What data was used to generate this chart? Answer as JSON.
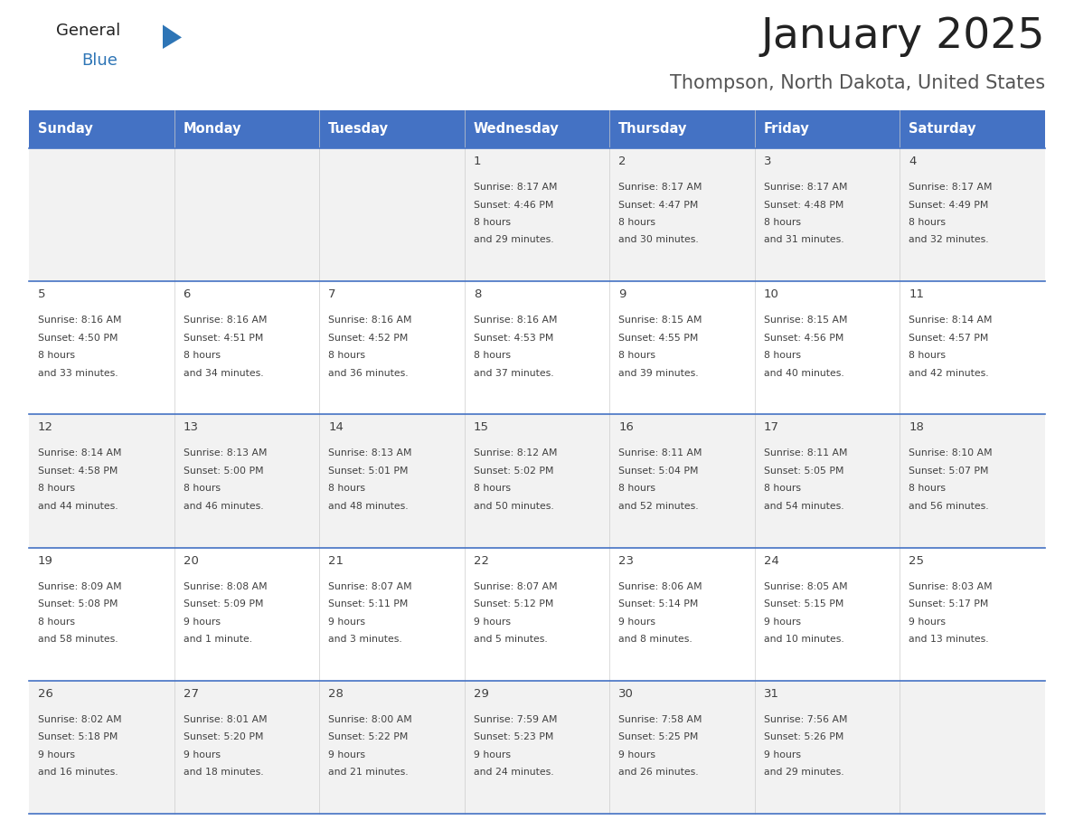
{
  "title": "January 2025",
  "subtitle": "Thompson, North Dakota, United States",
  "days_of_week": [
    "Sunday",
    "Monday",
    "Tuesday",
    "Wednesday",
    "Thursday",
    "Friday",
    "Saturday"
  ],
  "header_bg": "#4472C4",
  "header_text_color": "#FFFFFF",
  "row_bg_light": "#F2F2F2",
  "row_bg_white": "#FFFFFF",
  "cell_text_color": "#404040",
  "separator_color": "#4472C4",
  "title_color": "#222222",
  "subtitle_color": "#555555",
  "logo_general_color": "#222222",
  "logo_blue_color": "#2E75B6",
  "logo_triangle_color": "#2E75B6",
  "weeks": [
    {
      "days": [
        {
          "date": "",
          "sunrise": "",
          "sunset": "",
          "daylight": ""
        },
        {
          "date": "",
          "sunrise": "",
          "sunset": "",
          "daylight": ""
        },
        {
          "date": "",
          "sunrise": "",
          "sunset": "",
          "daylight": ""
        },
        {
          "date": "1",
          "sunrise": "8:17 AM",
          "sunset": "4:46 PM",
          "daylight": "8 hours\nand 29 minutes."
        },
        {
          "date": "2",
          "sunrise": "8:17 AM",
          "sunset": "4:47 PM",
          "daylight": "8 hours\nand 30 minutes."
        },
        {
          "date": "3",
          "sunrise": "8:17 AM",
          "sunset": "4:48 PM",
          "daylight": "8 hours\nand 31 minutes."
        },
        {
          "date": "4",
          "sunrise": "8:17 AM",
          "sunset": "4:49 PM",
          "daylight": "8 hours\nand 32 minutes."
        }
      ]
    },
    {
      "days": [
        {
          "date": "5",
          "sunrise": "8:16 AM",
          "sunset": "4:50 PM",
          "daylight": "8 hours\nand 33 minutes."
        },
        {
          "date": "6",
          "sunrise": "8:16 AM",
          "sunset": "4:51 PM",
          "daylight": "8 hours\nand 34 minutes."
        },
        {
          "date": "7",
          "sunrise": "8:16 AM",
          "sunset": "4:52 PM",
          "daylight": "8 hours\nand 36 minutes."
        },
        {
          "date": "8",
          "sunrise": "8:16 AM",
          "sunset": "4:53 PM",
          "daylight": "8 hours\nand 37 minutes."
        },
        {
          "date": "9",
          "sunrise": "8:15 AM",
          "sunset": "4:55 PM",
          "daylight": "8 hours\nand 39 minutes."
        },
        {
          "date": "10",
          "sunrise": "8:15 AM",
          "sunset": "4:56 PM",
          "daylight": "8 hours\nand 40 minutes."
        },
        {
          "date": "11",
          "sunrise": "8:14 AM",
          "sunset": "4:57 PM",
          "daylight": "8 hours\nand 42 minutes."
        }
      ]
    },
    {
      "days": [
        {
          "date": "12",
          "sunrise": "8:14 AM",
          "sunset": "4:58 PM",
          "daylight": "8 hours\nand 44 minutes."
        },
        {
          "date": "13",
          "sunrise": "8:13 AM",
          "sunset": "5:00 PM",
          "daylight": "8 hours\nand 46 minutes."
        },
        {
          "date": "14",
          "sunrise": "8:13 AM",
          "sunset": "5:01 PM",
          "daylight": "8 hours\nand 48 minutes."
        },
        {
          "date": "15",
          "sunrise": "8:12 AM",
          "sunset": "5:02 PM",
          "daylight": "8 hours\nand 50 minutes."
        },
        {
          "date": "16",
          "sunrise": "8:11 AM",
          "sunset": "5:04 PM",
          "daylight": "8 hours\nand 52 minutes."
        },
        {
          "date": "17",
          "sunrise": "8:11 AM",
          "sunset": "5:05 PM",
          "daylight": "8 hours\nand 54 minutes."
        },
        {
          "date": "18",
          "sunrise": "8:10 AM",
          "sunset": "5:07 PM",
          "daylight": "8 hours\nand 56 minutes."
        }
      ]
    },
    {
      "days": [
        {
          "date": "19",
          "sunrise": "8:09 AM",
          "sunset": "5:08 PM",
          "daylight": "8 hours\nand 58 minutes."
        },
        {
          "date": "20",
          "sunrise": "8:08 AM",
          "sunset": "5:09 PM",
          "daylight": "9 hours\nand 1 minute."
        },
        {
          "date": "21",
          "sunrise": "8:07 AM",
          "sunset": "5:11 PM",
          "daylight": "9 hours\nand 3 minutes."
        },
        {
          "date": "22",
          "sunrise": "8:07 AM",
          "sunset": "5:12 PM",
          "daylight": "9 hours\nand 5 minutes."
        },
        {
          "date": "23",
          "sunrise": "8:06 AM",
          "sunset": "5:14 PM",
          "daylight": "9 hours\nand 8 minutes."
        },
        {
          "date": "24",
          "sunrise": "8:05 AM",
          "sunset": "5:15 PM",
          "daylight": "9 hours\nand 10 minutes."
        },
        {
          "date": "25",
          "sunrise": "8:03 AM",
          "sunset": "5:17 PM",
          "daylight": "9 hours\nand 13 minutes."
        }
      ]
    },
    {
      "days": [
        {
          "date": "26",
          "sunrise": "8:02 AM",
          "sunset": "5:18 PM",
          "daylight": "9 hours\nand 16 minutes."
        },
        {
          "date": "27",
          "sunrise": "8:01 AM",
          "sunset": "5:20 PM",
          "daylight": "9 hours\nand 18 minutes."
        },
        {
          "date": "28",
          "sunrise": "8:00 AM",
          "sunset": "5:22 PM",
          "daylight": "9 hours\nand 21 minutes."
        },
        {
          "date": "29",
          "sunrise": "7:59 AM",
          "sunset": "5:23 PM",
          "daylight": "9 hours\nand 24 minutes."
        },
        {
          "date": "30",
          "sunrise": "7:58 AM",
          "sunset": "5:25 PM",
          "daylight": "9 hours\nand 26 minutes."
        },
        {
          "date": "31",
          "sunrise": "7:56 AM",
          "sunset": "5:26 PM",
          "daylight": "9 hours\nand 29 minutes."
        },
        {
          "date": "",
          "sunrise": "",
          "sunset": "",
          "daylight": ""
        }
      ]
    }
  ]
}
